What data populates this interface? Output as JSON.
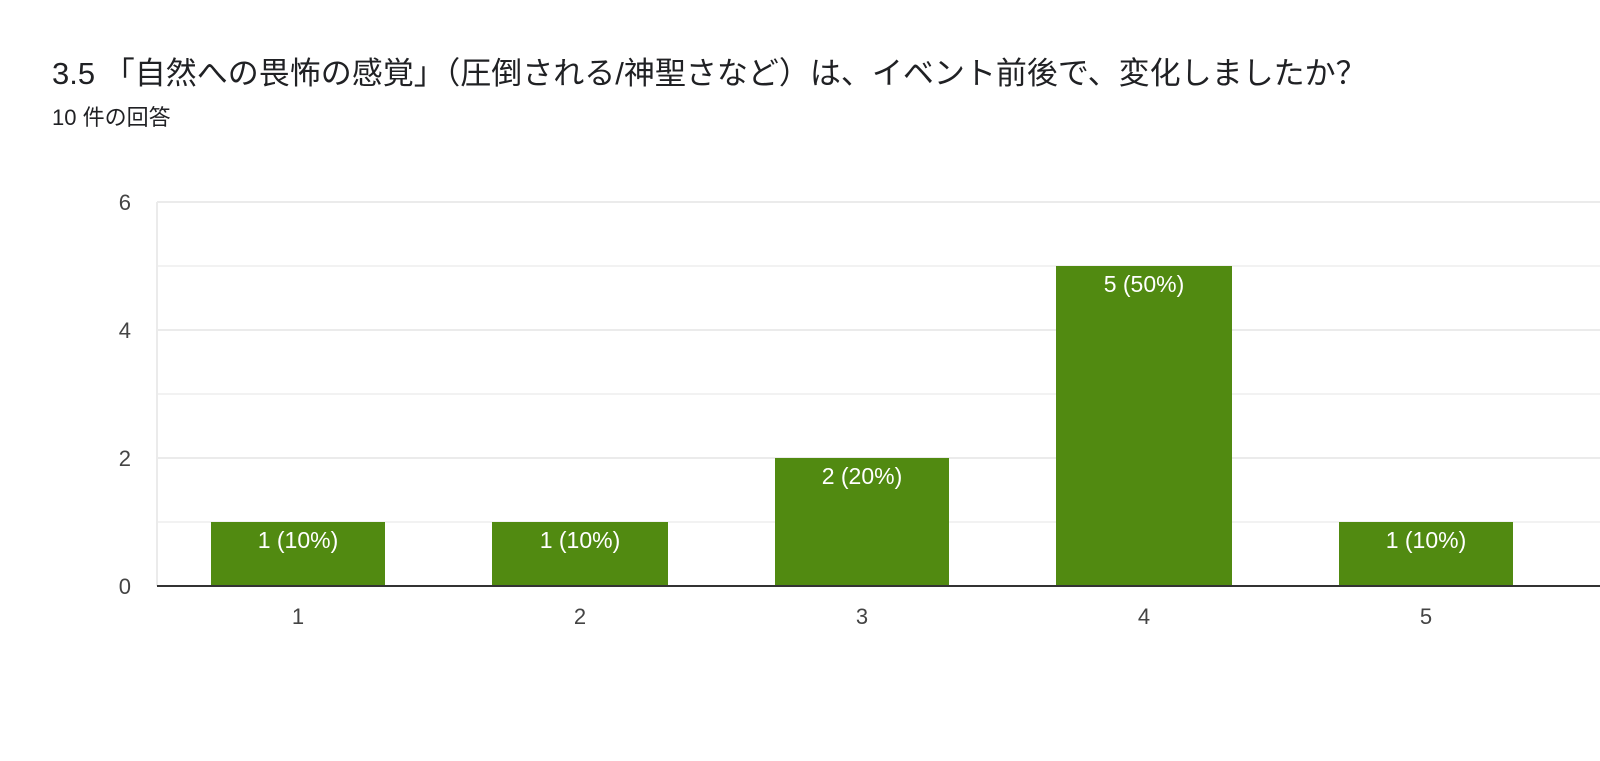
{
  "question": {
    "title": "3.5 「自然への畏怖の感覚」（圧倒される/神聖さなど）は、イベント前後で、変化しましたか？",
    "response_count": "10 件の回答"
  },
  "colors": {
    "bar": "#518a11",
    "grid": "#ebebeb",
    "axis": "#333333",
    "tick_text": "#444444",
    "label_text": "#ffffff"
  },
  "chart_data": {
    "type": "bar",
    "title": "",
    "xlabel": "",
    "ylabel": "",
    "categories": [
      "1",
      "2",
      "3",
      "4",
      "5"
    ],
    "values": [
      1,
      1,
      2,
      5,
      1
    ],
    "data_labels": [
      "1 (10%)",
      "1 (10%)",
      "2 (20%)",
      "5 (50%)",
      "1 (10%)"
    ],
    "ylim": [
      0,
      6
    ],
    "yticks": [
      "0",
      "2",
      "4",
      "6"
    ],
    "grid": true,
    "legend": "none"
  }
}
